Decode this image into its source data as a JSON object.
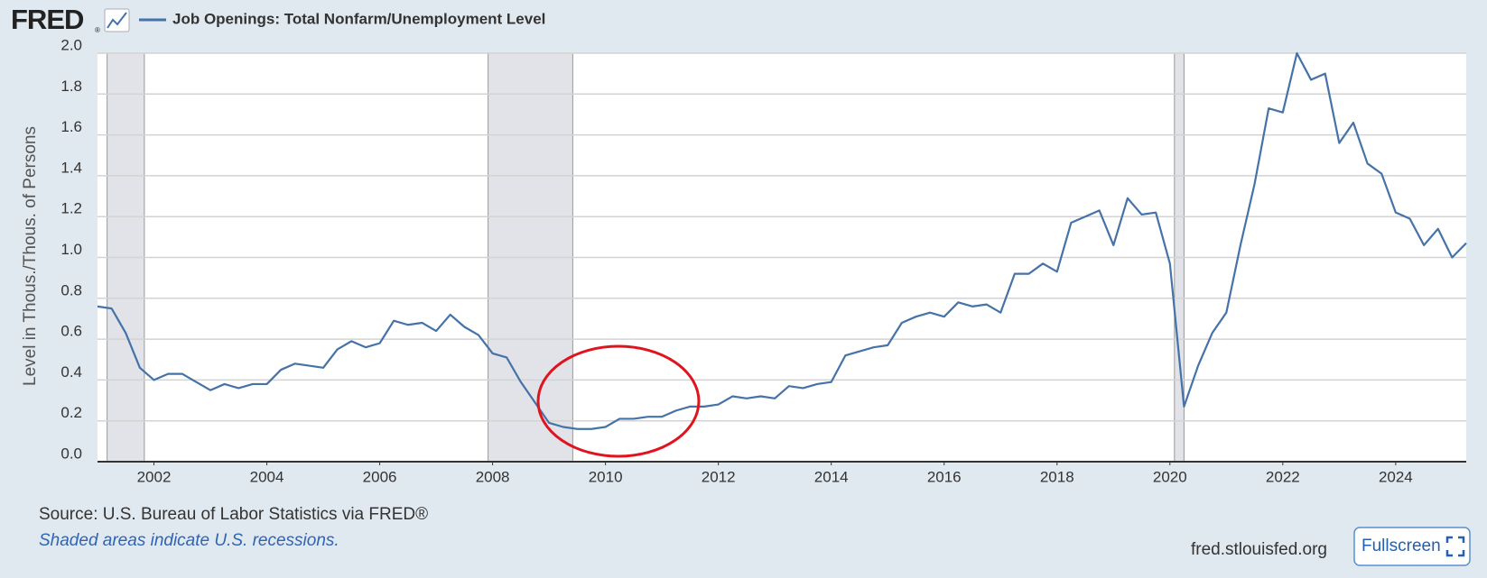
{
  "header": {
    "logo": "FRED",
    "logo_mark": "®"
  },
  "chart_data": {
    "type": "line",
    "y_label": "Level in Thous./Thous. of Persons",
    "x": [
      2001,
      2001.25,
      2001.5,
      2001.75,
      2002,
      2002.25,
      2002.5,
      2002.75,
      2003,
      2003.25,
      2003.5,
      2003.75,
      2004,
      2004.25,
      2004.5,
      2004.75,
      2005,
      2005.25,
      2005.5,
      2005.75,
      2006,
      2006.25,
      2006.5,
      2006.75,
      2007,
      2007.25,
      2007.5,
      2007.75,
      2008,
      2008.25,
      2008.5,
      2008.75,
      2009,
      2009.25,
      2009.5,
      2009.75,
      2010,
      2010.25,
      2010.5,
      2010.75,
      2011,
      2011.25,
      2011.5,
      2011.75,
      2012,
      2012.25,
      2012.5,
      2012.75,
      2013,
      2013.25,
      2013.5,
      2013.75,
      2014,
      2014.25,
      2014.5,
      2014.75,
      2015,
      2015.25,
      2015.5,
      2015.75,
      2016,
      2016.25,
      2016.5,
      2016.75,
      2017,
      2017.25,
      2017.5,
      2017.75,
      2018,
      2018.25,
      2018.5,
      2018.75,
      2019,
      2019.25,
      2019.5,
      2019.75,
      2020,
      2020.25,
      2020.5,
      2020.75,
      2021,
      2021.25,
      2021.5,
      2021.75,
      2022,
      2022.25,
      2022.5,
      2022.75,
      2023,
      2023.25,
      2023.5,
      2023.75,
      2024,
      2024.25,
      2024.5,
      2024.75,
      2025,
      2025.25
    ],
    "series": [
      {
        "name": "Job Openings: Total Nonfarm/Unemployment Level",
        "color": "#4572a7",
        "values": [
          0.76,
          0.75,
          0.63,
          0.46,
          0.4,
          0.43,
          0.43,
          0.39,
          0.35,
          0.38,
          0.36,
          0.38,
          0.38,
          0.45,
          0.48,
          0.47,
          0.46,
          0.55,
          0.59,
          0.56,
          0.58,
          0.69,
          0.67,
          0.68,
          0.64,
          0.72,
          0.66,
          0.62,
          0.53,
          0.51,
          0.39,
          0.29,
          0.19,
          0.17,
          0.16,
          0.16,
          0.17,
          0.21,
          0.21,
          0.22,
          0.22,
          0.25,
          0.27,
          0.27,
          0.28,
          0.32,
          0.31,
          0.32,
          0.31,
          0.37,
          0.36,
          0.38,
          0.39,
          0.52,
          0.54,
          0.56,
          0.57,
          0.68,
          0.71,
          0.73,
          0.71,
          0.78,
          0.76,
          0.77,
          0.73,
          0.92,
          0.92,
          0.97,
          0.93,
          1.17,
          1.2,
          1.23,
          1.06,
          1.29,
          1.21,
          1.22,
          0.97,
          0.27,
          0.47,
          0.63,
          0.73,
          1.06,
          1.36,
          1.73,
          1.71,
          2.0,
          1.87,
          1.9,
          1.56,
          1.66,
          1.46,
          1.41,
          1.22,
          1.19,
          1.06,
          1.14,
          1.0,
          1.07
        ]
      }
    ],
    "recessions": [
      [
        2001.17,
        2001.83
      ],
      [
        2007.92,
        2009.42
      ],
      [
        2020.08,
        2020.25
      ]
    ],
    "recession_color": "#e1e3e8",
    "xlim": [
      2001,
      2025.25
    ],
    "xticks": [
      2002,
      2004,
      2006,
      2008,
      2010,
      2012,
      2014,
      2016,
      2018,
      2020,
      2022,
      2024
    ],
    "ylim": [
      0,
      2
    ],
    "yticks": [
      {
        "value": 0,
        "label": "0.0"
      },
      0.2,
      0.4,
      0.6,
      0.8,
      {
        "value": 1,
        "label": "1.0"
      },
      1.2,
      1.4,
      1.6,
      1.8,
      {
        "value": 2,
        "label": "2.0"
      }
    ],
    "grid": true
  },
  "footer": {
    "source": "Source: U.S. Bureau of Labor Statistics via FRED®",
    "note": "Shaded areas indicate U.S. recessions.",
    "site": "fred.stlouisfed.org",
    "button": "Fullscreen"
  }
}
